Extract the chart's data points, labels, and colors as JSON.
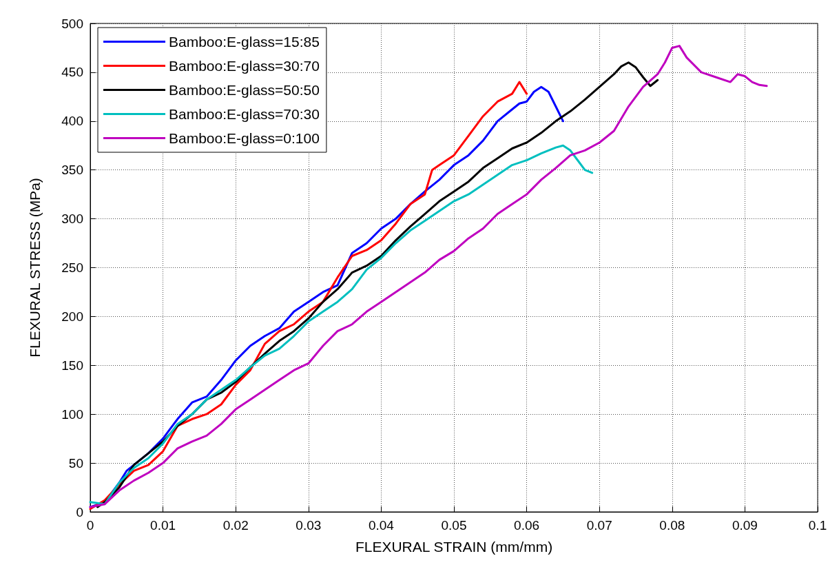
{
  "chart_data": {
    "type": "line",
    "xlabel": "FLEXURAL STRAIN (mm/mm)",
    "ylabel": "FLEXURAL STRESS (MPa)",
    "xlim": [
      0,
      0.1
    ],
    "xticks": [
      0,
      0.01,
      0.02,
      0.03,
      0.04,
      0.05,
      0.06,
      0.07,
      0.08,
      0.09,
      0.1
    ],
    "ylim": [
      0,
      500
    ],
    "yticks": [
      0,
      50,
      100,
      150,
      200,
      250,
      300,
      350,
      400,
      450,
      500
    ],
    "grid": true,
    "legend": "top left",
    "marker": "none",
    "line_style": "solid",
    "series": [
      {
        "name": "Bamboo:E-glass=15:85",
        "color": "#0000ff",
        "x": [
          0,
          0.002,
          0.004,
          0.005,
          0.008,
          0.01,
          0.012,
          0.014,
          0.016,
          0.018,
          0.02,
          0.022,
          0.024,
          0.026,
          0.028,
          0.03,
          0.032,
          0.034,
          0.036,
          0.038,
          0.04,
          0.042,
          0.044,
          0.046,
          0.048,
          0.05,
          0.052,
          0.054,
          0.056,
          0.058,
          0.059,
          0.06,
          0.061,
          0.062,
          0.063,
          0.064,
          0.065
        ],
        "values": [
          5,
          10,
          30,
          42,
          60,
          75,
          95,
          112,
          118,
          135,
          155,
          170,
          180,
          188,
          205,
          215,
          225,
          232,
          265,
          275,
          290,
          300,
          315,
          328,
          340,
          355,
          365,
          380,
          400,
          412,
          418,
          420,
          430,
          435,
          430,
          415,
          400
        ]
      },
      {
        "name": "Bamboo:E-glass=30:70",
        "color": "#ff0000",
        "x": [
          0,
          0.002,
          0.004,
          0.006,
          0.008,
          0.01,
          0.012,
          0.014,
          0.016,
          0.018,
          0.02,
          0.022,
          0.024,
          0.026,
          0.028,
          0.03,
          0.032,
          0.034,
          0.036,
          0.038,
          0.04,
          0.042,
          0.044,
          0.046,
          0.047,
          0.048,
          0.05,
          0.052,
          0.054,
          0.056,
          0.058,
          0.059,
          0.06
        ],
        "values": [
          3,
          12,
          28,
          42,
          48,
          62,
          88,
          95,
          100,
          110,
          130,
          145,
          172,
          185,
          192,
          205,
          215,
          240,
          262,
          268,
          278,
          295,
          315,
          325,
          350,
          355,
          365,
          385,
          405,
          420,
          428,
          440,
          428
        ]
      },
      {
        "name": "Bamboo:E-glass=50:50",
        "color": "#000000",
        "x": [
          0.001,
          0.002,
          0.004,
          0.006,
          0.008,
          0.01,
          0.012,
          0.014,
          0.016,
          0.018,
          0.02,
          0.022,
          0.024,
          0.026,
          0.028,
          0.03,
          0.032,
          0.034,
          0.036,
          0.038,
          0.04,
          0.042,
          0.044,
          0.046,
          0.048,
          0.05,
          0.052,
          0.054,
          0.056,
          0.058,
          0.06,
          0.062,
          0.064,
          0.066,
          0.068,
          0.07,
          0.072,
          0.073,
          0.074,
          0.075,
          0.076,
          0.077,
          0.078
        ],
        "values": [
          5,
          10,
          25,
          48,
          60,
          72,
          88,
          100,
          115,
          122,
          133,
          148,
          162,
          175,
          185,
          198,
          215,
          228,
          245,
          252,
          262,
          278,
          292,
          305,
          318,
          328,
          338,
          352,
          362,
          372,
          378,
          388,
          400,
          410,
          422,
          435,
          448,
          456,
          460,
          455,
          445,
          436,
          442
        ]
      },
      {
        "name": "Bamboo:E-glass=70:30",
        "color": "#00bfbf",
        "x": [
          0,
          0.002,
          0.004,
          0.006,
          0.008,
          0.01,
          0.012,
          0.014,
          0.016,
          0.018,
          0.02,
          0.022,
          0.024,
          0.026,
          0.028,
          0.03,
          0.032,
          0.034,
          0.036,
          0.038,
          0.04,
          0.042,
          0.044,
          0.046,
          0.048,
          0.05,
          0.052,
          0.054,
          0.056,
          0.058,
          0.06,
          0.062,
          0.064,
          0.065,
          0.066,
          0.067,
          0.068,
          0.069
        ],
        "values": [
          10,
          8,
          30,
          45,
          55,
          70,
          90,
          100,
          115,
          125,
          135,
          148,
          160,
          167,
          180,
          195,
          205,
          215,
          228,
          248,
          260,
          275,
          288,
          298,
          308,
          318,
          325,
          335,
          345,
          355,
          360,
          367,
          373,
          375,
          370,
          360,
          350,
          347
        ]
      },
      {
        "name": "Bamboo:E-glass=0:100",
        "color": "#bf00bf",
        "x": [
          0,
          0.002,
          0.004,
          0.006,
          0.008,
          0.01,
          0.012,
          0.014,
          0.016,
          0.018,
          0.02,
          0.022,
          0.024,
          0.026,
          0.028,
          0.03,
          0.032,
          0.034,
          0.036,
          0.038,
          0.04,
          0.042,
          0.044,
          0.046,
          0.048,
          0.05,
          0.052,
          0.054,
          0.056,
          0.058,
          0.06,
          0.062,
          0.064,
          0.066,
          0.068,
          0.07,
          0.072,
          0.074,
          0.076,
          0.078,
          0.079,
          0.08,
          0.081,
          0.082,
          0.084,
          0.086,
          0.088,
          0.089,
          0.09,
          0.091,
          0.092,
          0.093
        ],
        "values": [
          5,
          8,
          22,
          32,
          40,
          50,
          65,
          72,
          78,
          90,
          105,
          115,
          125,
          135,
          145,
          152,
          170,
          185,
          192,
          205,
          215,
          225,
          235,
          245,
          258,
          267,
          280,
          290,
          305,
          315,
          325,
          340,
          352,
          365,
          370,
          378,
          390,
          415,
          435,
          448,
          460,
          475,
          477,
          465,
          450,
          445,
          440,
          448,
          446,
          440,
          437,
          436
        ]
      }
    ]
  }
}
